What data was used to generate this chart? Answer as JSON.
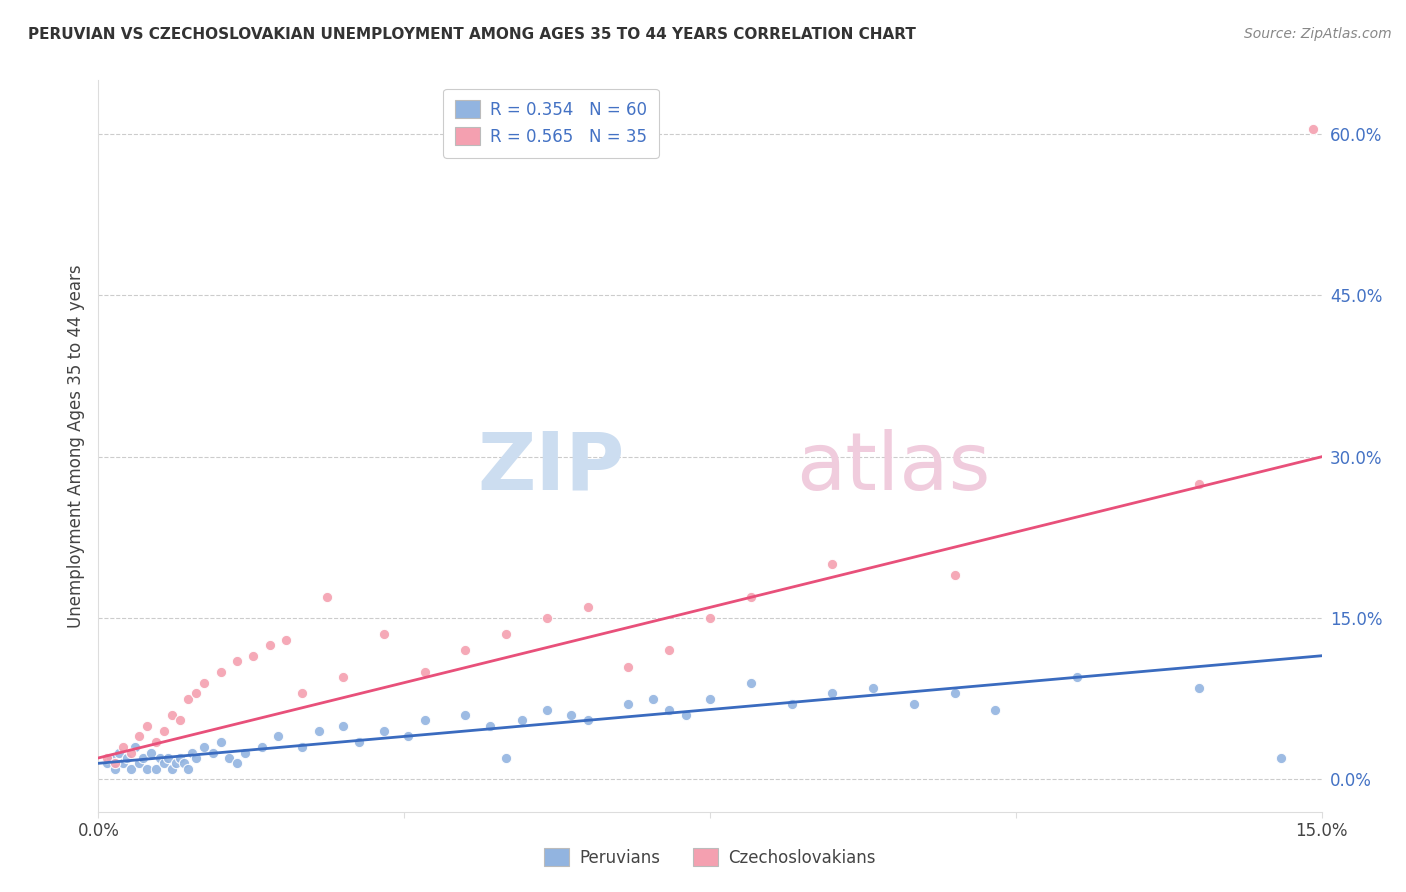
{
  "title": "PERUVIAN VS CZECHOSLOVAKIAN UNEMPLOYMENT AMONG AGES 35 TO 44 YEARS CORRELATION CHART",
  "source": "Source: ZipAtlas.com",
  "ylabel": "Unemployment Among Ages 35 to 44 years",
  "right_yticks": [
    "0.0%",
    "15.0%",
    "30.0%",
    "45.0%",
    "60.0%"
  ],
  "right_ytick_vals": [
    0.0,
    15.0,
    30.0,
    45.0,
    60.0
  ],
  "xlim": [
    0.0,
    15.0
  ],
  "ylim": [
    -3.0,
    65.0
  ],
  "legend_blue_label": "R = 0.354   N = 60",
  "legend_pink_label": "R = 0.565   N = 35",
  "bottom_legend_peruvians": "Peruvians",
  "bottom_legend_czech": "Czechoslovakians",
  "blue_color": "#92b4e0",
  "pink_color": "#f4a0b0",
  "blue_line_color": "#3a6bbf",
  "pink_line_color": "#e8507a",
  "peruvian_x": [
    0.1,
    0.15,
    0.2,
    0.25,
    0.3,
    0.35,
    0.4,
    0.45,
    0.5,
    0.55,
    0.6,
    0.65,
    0.7,
    0.75,
    0.8,
    0.85,
    0.9,
    0.95,
    1.0,
    1.05,
    1.1,
    1.15,
    1.2,
    1.3,
    1.4,
    1.5,
    1.6,
    1.7,
    1.8,
    2.0,
    2.2,
    2.5,
    2.7,
    3.0,
    3.2,
    3.5,
    3.8,
    4.0,
    4.5,
    4.8,
    5.0,
    5.2,
    5.5,
    5.8,
    6.0,
    6.5,
    6.8,
    7.0,
    7.2,
    7.5,
    8.0,
    8.5,
    9.0,
    9.5,
    10.0,
    10.5,
    11.0,
    12.0,
    13.5,
    14.5
  ],
  "peruvian_y": [
    1.5,
    2.0,
    1.0,
    2.5,
    1.5,
    2.0,
    1.0,
    3.0,
    1.5,
    2.0,
    1.0,
    2.5,
    1.0,
    2.0,
    1.5,
    2.0,
    1.0,
    1.5,
    2.0,
    1.5,
    1.0,
    2.5,
    2.0,
    3.0,
    2.5,
    3.5,
    2.0,
    1.5,
    2.5,
    3.0,
    4.0,
    3.0,
    4.5,
    5.0,
    3.5,
    4.5,
    4.0,
    5.5,
    6.0,
    5.0,
    2.0,
    5.5,
    6.5,
    6.0,
    5.5,
    7.0,
    7.5,
    6.5,
    6.0,
    7.5,
    9.0,
    7.0,
    8.0,
    8.5,
    7.0,
    8.0,
    6.5,
    9.5,
    8.5,
    2.0
  ],
  "czech_x": [
    0.1,
    0.2,
    0.3,
    0.4,
    0.5,
    0.6,
    0.7,
    0.8,
    0.9,
    1.0,
    1.1,
    1.2,
    1.3,
    1.5,
    1.7,
    1.9,
    2.1,
    2.3,
    2.5,
    2.8,
    3.0,
    3.5,
    4.0,
    4.5,
    5.0,
    5.5,
    6.0,
    6.5,
    7.0,
    7.5,
    8.0,
    9.0,
    10.5,
    13.5,
    14.9
  ],
  "czech_y": [
    2.0,
    1.5,
    3.0,
    2.5,
    4.0,
    5.0,
    3.5,
    4.5,
    6.0,
    5.5,
    7.5,
    8.0,
    9.0,
    10.0,
    11.0,
    11.5,
    12.5,
    13.0,
    8.0,
    17.0,
    9.5,
    13.5,
    10.0,
    12.0,
    13.5,
    15.0,
    16.0,
    10.5,
    12.0,
    15.0,
    17.0,
    20.0,
    19.0,
    27.5,
    60.5
  ],
  "blue_trendline_x": [
    0.0,
    15.0
  ],
  "blue_trendline_y": [
    1.5,
    11.5
  ],
  "pink_trendline_x": [
    0.0,
    15.0
  ],
  "pink_trendline_y": [
    2.0,
    30.0
  ]
}
